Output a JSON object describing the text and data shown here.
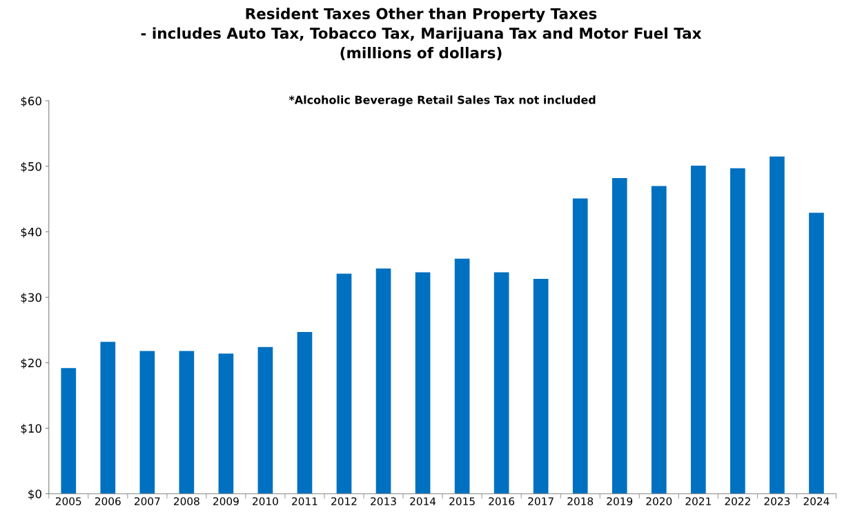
{
  "chart_data": {
    "type": "bar",
    "title": "Resident Taxes Other than Property Taxes\n- includes Auto Tax, Tobacco Tax, Marijuana Tax and Motor Fuel Tax\n(millions of dollars)",
    "subtitle": "*Alcoholic Beverage Retail Sales Tax not included",
    "categories": [
      "2005",
      "2006",
      "2007",
      "2008",
      "2009",
      "2010",
      "2011",
      "2012",
      "2013",
      "2014",
      "2015",
      "2016",
      "2017",
      "2018",
      "2019",
      "2020",
      "2021",
      "2022",
      "2023",
      "2024"
    ],
    "values": [
      19.2,
      23.2,
      21.8,
      21.8,
      21.4,
      22.4,
      24.7,
      33.6,
      34.4,
      33.8,
      35.9,
      33.8,
      32.8,
      45.1,
      48.2,
      47.0,
      50.1,
      49.7,
      51.5,
      42.9
    ],
    "color": "#0070c0",
    "ylim": [
      0,
      60
    ],
    "yticks": [
      {
        "value": 0,
        "label": "$0"
      },
      {
        "value": 10,
        "label": "$10"
      },
      {
        "value": 20,
        "label": "$20"
      },
      {
        "value": 30,
        "label": "$30"
      },
      {
        "value": 40,
        "label": "$40"
      },
      {
        "value": 50,
        "label": "$50"
      },
      {
        "value": 60,
        "label": "$60"
      }
    ],
    "grid": false
  }
}
